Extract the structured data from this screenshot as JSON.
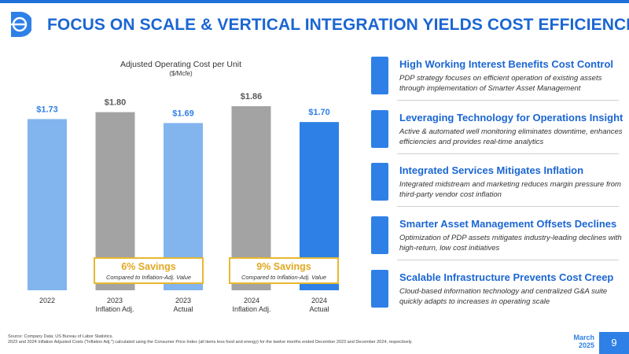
{
  "header": {
    "title": "FOCUS ON SCALE & VERTICAL INTEGRATION YIELDS COST EFFICIENCIES",
    "logo": "dt-logo-icon"
  },
  "chart_data": {
    "type": "bar",
    "title": "Adjusted Operating Cost per Unit",
    "subtitle": "($/Mcfe)",
    "categories": [
      "2022",
      "2023 Inflation Adj.",
      "2023 Actual",
      "2024 Inflation Adj.",
      "2024 Actual"
    ],
    "category_lines": [
      [
        "2022"
      ],
      [
        "2023",
        "Inflation Adj."
      ],
      [
        "2023",
        "Actual"
      ],
      [
        "2024",
        "Inflation Adj."
      ],
      [
        "2024",
        "Actual"
      ]
    ],
    "values": [
      1.73,
      1.8,
      1.69,
      1.86,
      1.7
    ],
    "data_labels": [
      "$1.73",
      "$1.80",
      "$1.69",
      "$1.86",
      "$1.70"
    ],
    "bar_colors": [
      "#82b4ee",
      "#a3a3a3",
      "#82b4ee",
      "#a3a3a3",
      "#2f80e6"
    ],
    "label_colors": [
      "#2f80e6",
      "#595959",
      "#2f80e6",
      "#595959",
      "#2f80e6"
    ],
    "ylim": [
      0,
      2.0
    ],
    "grid": false,
    "annotations": [
      {
        "title": "6% Savings",
        "subtitle": "Compared to Inflation-Adj. Value"
      },
      {
        "title": "9% Savings",
        "subtitle": "Compared to Inflation-Adj. Value"
      }
    ]
  },
  "items": [
    {
      "title": "High Working Interest Benefits Cost Control",
      "desc": "PDP strategy focuses on efficient operation of existing assets through implementation of Smarter Asset Management"
    },
    {
      "title": "Leveraging Technology for Operations Insight",
      "desc": "Active & automated well monitoring eliminates downtime, enhances efficiencies and provides real-time analytics"
    },
    {
      "title": "Integrated Services Mitigates Inflation",
      "desc": "Integrated midstream and marketing reduces margin pressure from third-party vendor cost inflation"
    },
    {
      "title": "Smarter Asset Management Offsets Declines",
      "desc": "Optimization of PDP assets mitigates industry-leading declines with high-return, low cost initiatives"
    },
    {
      "title": "Scalable Infrastructure Prevents Cost Creep",
      "desc": "Cloud-based information technology and centralized G&A suite quickly adapts to increases in operating scale"
    }
  ],
  "footer": {
    "source_line1": "Source: Company Data; US Bureau of Labor Statistics.",
    "source_line2": "2023 and 2024 Inflation Adjusted Costs (\"Inflation Adj.\") calculated using the Consumer Price Index (all items less food and energy) for the twelve months ended December 2023 and December 2024, respectively.",
    "date_month": "March",
    "date_year": "2025",
    "page": "9"
  }
}
